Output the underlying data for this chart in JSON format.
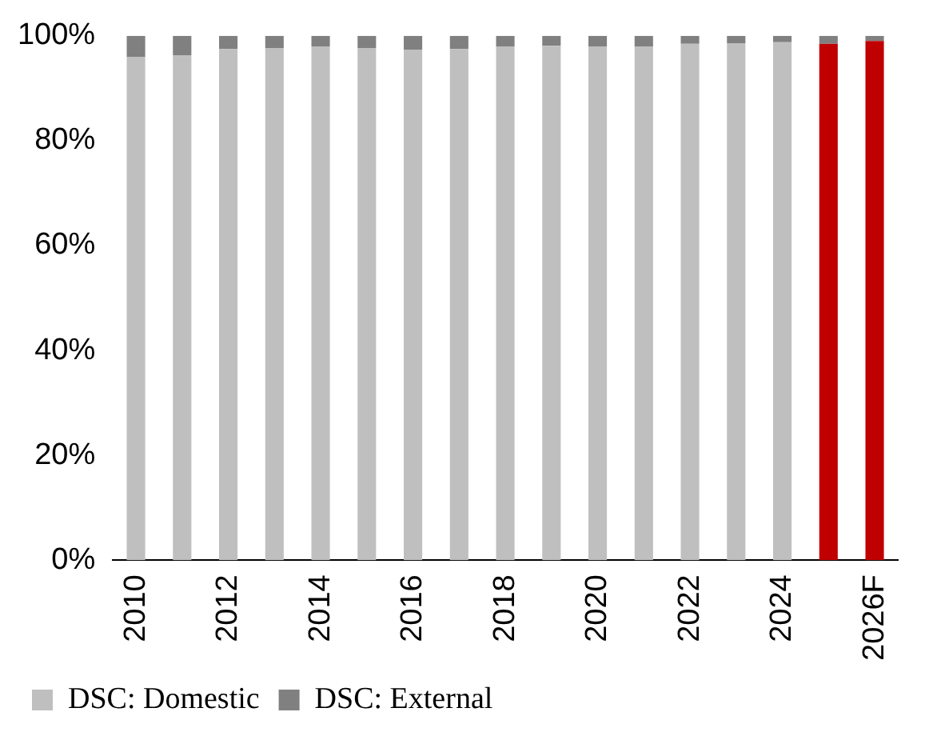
{
  "chart_data": {
    "type": "bar",
    "stacked": true,
    "categories": [
      "2010",
      null,
      "2012",
      null,
      "2014",
      null,
      "2016",
      null,
      "2018",
      null,
      "2020",
      null,
      "2022",
      null,
      "2024",
      null,
      "2026F"
    ],
    "series": [
      {
        "name": "DSC: Domestic",
        "color": "#bfbfbf",
        "colors": [
          "#bfbfbf",
          "#bfbfbf",
          "#bfbfbf",
          "#bfbfbf",
          "#bfbfbf",
          "#bfbfbf",
          "#bfbfbf",
          "#bfbfbf",
          "#bfbfbf",
          "#bfbfbf",
          "#bfbfbf",
          "#bfbfbf",
          "#bfbfbf",
          "#bfbfbf",
          "#bfbfbf",
          "#c00000",
          "#c00000"
        ],
        "values": [
          96,
          96.3,
          97.5,
          97.7,
          98,
          97.7,
          97.3,
          97.5,
          98,
          98.1,
          98,
          98,
          98.5,
          98.6,
          98.8,
          98.5,
          99
        ]
      },
      {
        "name": "DSC: External",
        "color": "#808080",
        "values": [
          4,
          3.7,
          2.5,
          2.3,
          2,
          2.3,
          2.7,
          2.5,
          2,
          1.9,
          2,
          2,
          1.5,
          1.4,
          1.2,
          1.5,
          1
        ]
      }
    ],
    "ylim": [
      0,
      100
    ],
    "yticks": [
      {
        "value": 0,
        "label": "0%"
      },
      {
        "value": 20,
        "label": "20%"
      },
      {
        "value": 40,
        "label": "40%"
      },
      {
        "value": 60,
        "label": "60%"
      },
      {
        "value": 80,
        "label": "80%"
      },
      {
        "value": 100,
        "label": "100%"
      }
    ],
    "grid": false,
    "legend": "bottom"
  }
}
